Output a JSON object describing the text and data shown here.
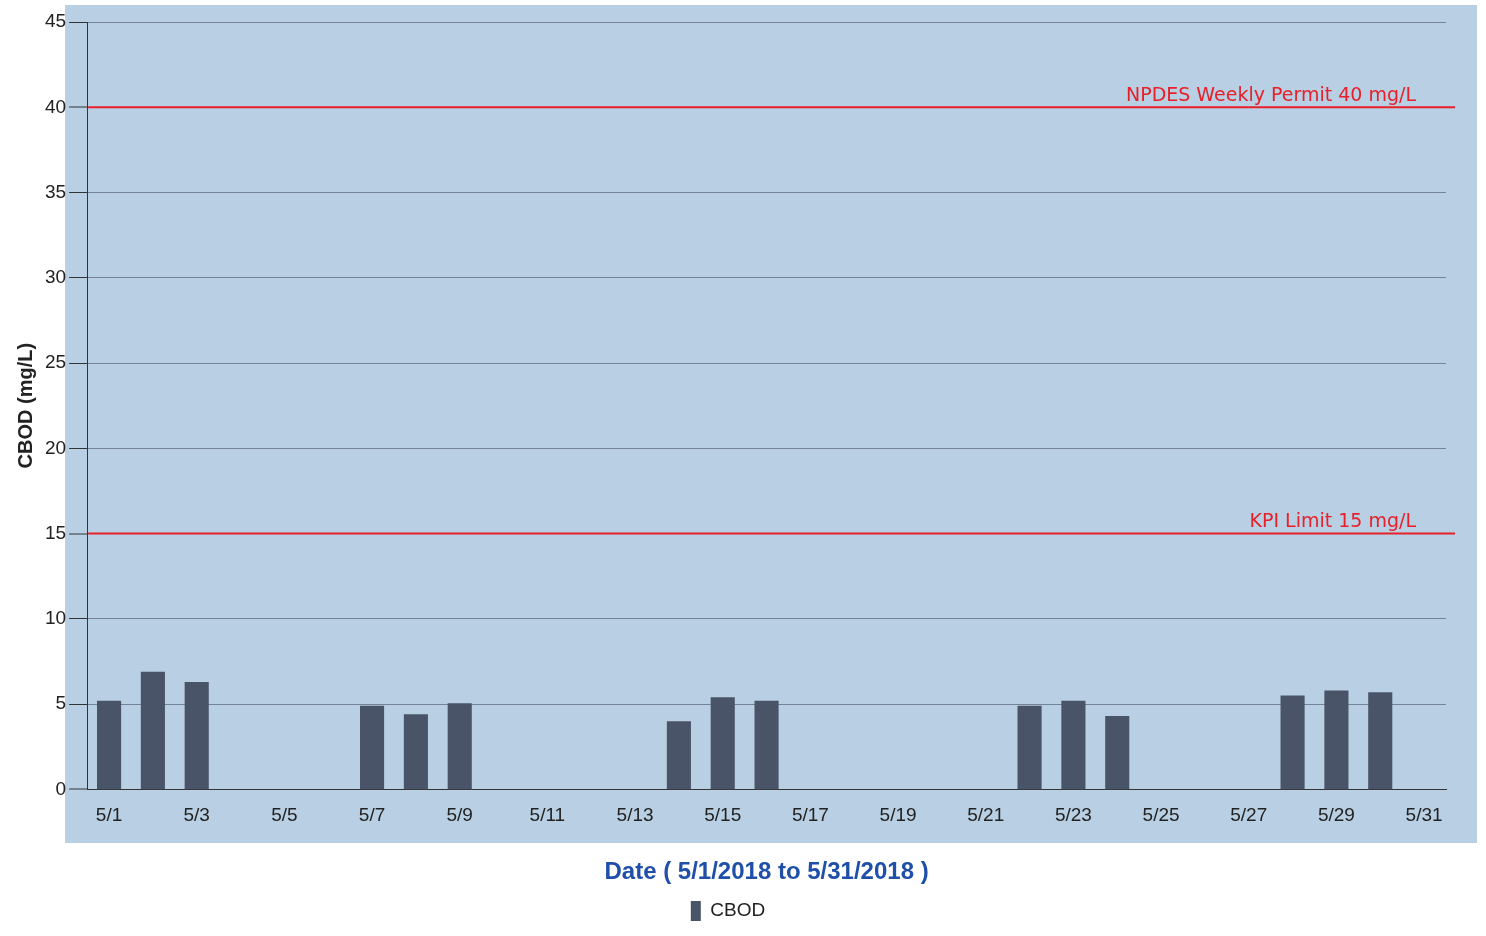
{
  "chart_data": {
    "type": "bar",
    "xlabel": "Date ( 5/1/2018 to 5/31/2018 )",
    "ylabel": "CBOD (mg/L)",
    "categories": [
      "5/1",
      null,
      "5/3",
      null,
      "5/5",
      null,
      "5/7",
      null,
      "5/9",
      null,
      "5/11",
      null,
      "5/13",
      null,
      "5/15",
      null,
      "5/17",
      null,
      "5/19",
      null,
      "5/21",
      null,
      "5/23",
      null,
      "5/25",
      null,
      "5/27",
      null,
      "5/29",
      null,
      "5/31"
    ],
    "series": [
      {
        "name": "CBOD",
        "color": "#4a5468",
        "values": [
          5.2,
          6.9,
          6.3,
          null,
          null,
          null,
          4.9,
          4.4,
          5.05,
          null,
          null,
          null,
          null,
          4.0,
          5.4,
          5.2,
          null,
          null,
          null,
          null,
          null,
          4.9,
          5.2,
          4.3,
          null,
          null,
          null,
          5.5,
          5.8,
          5.7,
          null
        ]
      }
    ],
    "ylim": [
      0,
      45
    ],
    "yticks": [
      0,
      5,
      10,
      15,
      20,
      25,
      30,
      35,
      40,
      45
    ],
    "ref_lines": [
      {
        "axis": "y",
        "value": 40,
        "label": "NPDES Weekly Permit 40 mg/L",
        "color": "#e8202a"
      },
      {
        "axis": "y",
        "value": 15,
        "label": "KPI Limit 15 mg/L",
        "color": "#e8202a"
      }
    ],
    "grid": "y",
    "legend": "bottom"
  }
}
